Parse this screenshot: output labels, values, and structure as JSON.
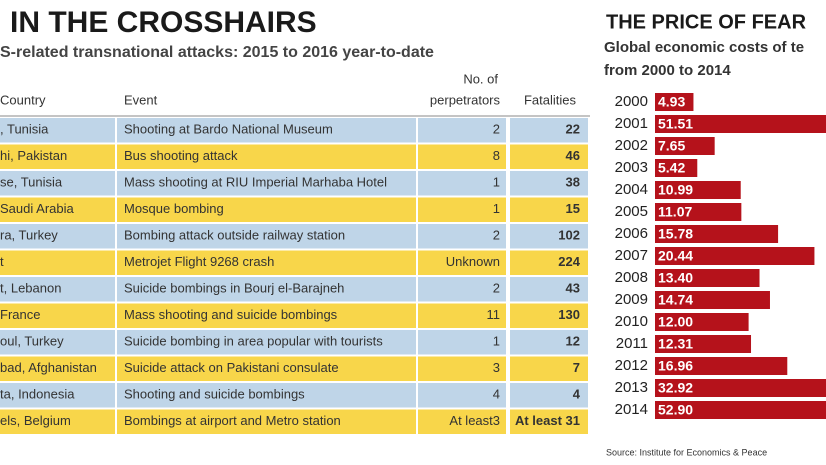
{
  "table": {
    "title": "IN THE CROSSHAIRS",
    "subtitle": "S-related transnational attacks: 2015 to 2016 year-to-date",
    "columns": [
      "Country",
      "Event",
      [
        "No. of",
        "perpetrators"
      ],
      "Fatalities"
    ],
    "rows": [
      [
        ", Tunisia",
        "Shooting at Bardo National Museum",
        "2",
        "22"
      ],
      [
        "hi, Pakistan",
        "Bus shooting attack",
        "8",
        "46"
      ],
      [
        "se, Tunisia",
        "Mass shooting at RIU Imperial Marhaba Hotel",
        "1",
        "38"
      ],
      [
        "Saudi Arabia",
        "Mosque bombing",
        "1",
        "15"
      ],
      [
        "ra, Turkey",
        "Bombing attack outside railway station",
        "2",
        "102"
      ],
      [
        "t",
        "Metrojet Flight 9268 crash",
        "Unknown",
        "224"
      ],
      [
        "t, Lebanon",
        "Suicide bombings in Bourj el-Barajneh",
        "2",
        "43"
      ],
      [
        "France",
        "Mass shooting and suicide bombings",
        "11",
        "130"
      ],
      [
        "oul, Turkey",
        "Suicide bombing in area popular with tourists",
        "1",
        "12"
      ],
      [
        "bad, Afghanistan",
        "Suicide attack on Pakistani consulate",
        "3",
        "7"
      ],
      [
        "ta, Indonesia",
        "Shooting and suicide bombings",
        "4",
        "4"
      ],
      [
        "els, Belgium",
        "Bombings at airport and Metro station",
        "At least3",
        "At least 31"
      ]
    ]
  },
  "chart_data": {
    "type": "bar",
    "title": "THE PRICE OF FEAR",
    "subtitle": [
      "Global economic costs of te",
      "from 2000 to 2014"
    ],
    "categories": [
      "2000",
      "2001",
      "2002",
      "2003",
      "2004",
      "2005",
      "2006",
      "2007",
      "2008",
      "2009",
      "2010",
      "2011",
      "2012",
      "2013",
      "2014"
    ],
    "values": [
      4.93,
      51.51,
      7.65,
      5.42,
      10.99,
      11.07,
      15.78,
      20.44,
      13.4,
      14.74,
      12,
      12.31,
      16.96,
      32.92,
      52.9
    ],
    "value_labels": [
      "4.93",
      "51.51",
      "7.65",
      "5.42",
      "10.99",
      "11.07",
      "15.78",
      "20.44",
      "13.40",
      "14.74",
      "12.00",
      "12.31",
      "16.96",
      "32.92",
      "52.90"
    ],
    "color": "#b5121b",
    "source": "Source: Institute for Economics & Peace"
  }
}
